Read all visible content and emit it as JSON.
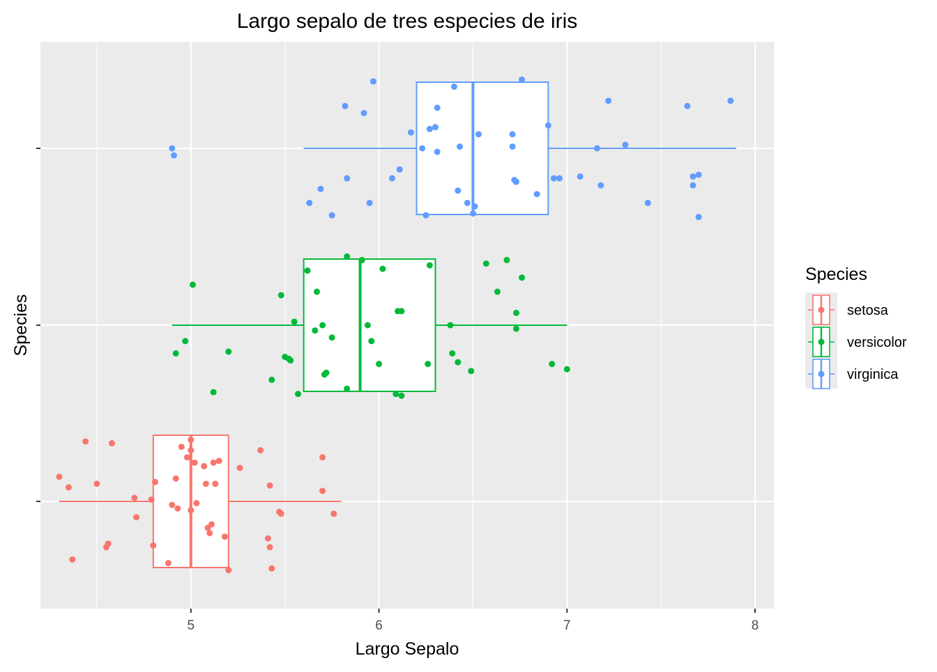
{
  "chart_data": {
    "type": "boxplot",
    "title": "Largo sepalo de tres especies de iris",
    "xlabel": "Largo Sepalo",
    "ylabel": "Species",
    "xlim": [
      4.2,
      8.1
    ],
    "x_ticks": [
      5,
      6,
      7,
      8
    ],
    "x_tick_labels": [
      "5",
      "6",
      "7",
      "8"
    ],
    "y_tick_labels": [],
    "categories": [
      "setosa",
      "versicolor",
      "virginica"
    ],
    "grid": true,
    "legend": {
      "title": "Species",
      "position": "right",
      "entries": [
        "setosa",
        "versicolor",
        "virginica"
      ]
    },
    "colors": {
      "setosa": "#F8766D",
      "versicolor": "#00BA38",
      "virginica": "#619CFF",
      "panel": "#EBEBEB",
      "grid": "#FFFFFF"
    },
    "series": [
      {
        "name": "setosa",
        "box": {
          "min": 4.3,
          "q1": 4.8,
          "median": 5.0,
          "q3": 5.2,
          "max": 5.8
        },
        "points": [
          [
            4.3,
            0.14
          ],
          [
            4.35,
            0.08
          ],
          [
            4.37,
            -0.33
          ],
          [
            4.44,
            0.34
          ],
          [
            4.5,
            0.1
          ],
          [
            4.55,
            -0.26
          ],
          [
            4.56,
            -0.24
          ],
          [
            4.58,
            0.33
          ],
          [
            4.7,
            0.02
          ],
          [
            4.71,
            -0.09
          ],
          [
            4.79,
            0.01
          ],
          [
            4.8,
            -0.25
          ],
          [
            4.81,
            0.11
          ],
          [
            4.88,
            -0.35
          ],
          [
            4.9,
            -0.02
          ],
          [
            4.92,
            0.13
          ],
          [
            4.93,
            -0.04
          ],
          [
            4.95,
            0.31
          ],
          [
            4.98,
            0.25
          ],
          [
            5.0,
            0.35
          ],
          [
            5.0,
            -0.05
          ],
          [
            5.0,
            0.29
          ],
          [
            5.02,
            0.22
          ],
          [
            5.03,
            -0.01
          ],
          [
            5.07,
            0.2
          ],
          [
            5.08,
            0.1
          ],
          [
            5.09,
            -0.15
          ],
          [
            5.1,
            -0.18
          ],
          [
            5.11,
            -0.13
          ],
          [
            5.12,
            0.22
          ],
          [
            5.13,
            0.1
          ],
          [
            5.15,
            0.23
          ],
          [
            5.18,
            -0.2
          ],
          [
            5.2,
            -0.39
          ],
          [
            5.26,
            0.19
          ],
          [
            5.37,
            0.29
          ],
          [
            5.41,
            -0.21
          ],
          [
            5.42,
            0.09
          ],
          [
            5.42,
            -0.26
          ],
          [
            5.43,
            -0.38
          ],
          [
            5.47,
            -0.06
          ],
          [
            5.48,
            -0.07
          ],
          [
            5.7,
            0.25
          ],
          [
            5.7,
            0.06
          ],
          [
            5.76,
            -0.07
          ]
        ]
      },
      {
        "name": "versicolor",
        "box": {
          "min": 4.9,
          "q1": 5.6,
          "median": 5.9,
          "q3": 6.3,
          "max": 7.0
        },
        "points": [
          [
            4.92,
            -0.16
          ],
          [
            4.97,
            -0.09
          ],
          [
            5.01,
            0.23
          ],
          [
            5.12,
            -0.38
          ],
          [
            5.2,
            -0.15
          ],
          [
            5.43,
            -0.31
          ],
          [
            5.48,
            0.17
          ],
          [
            5.5,
            -0.18
          ],
          [
            5.52,
            -0.19
          ],
          [
            5.53,
            -0.2
          ],
          [
            5.55,
            0.02
          ],
          [
            5.57,
            -0.39
          ],
          [
            5.62,
            0.31
          ],
          [
            5.66,
            -0.03
          ],
          [
            5.67,
            0.19
          ],
          [
            5.7,
            0.0
          ],
          [
            5.71,
            -0.28
          ],
          [
            5.72,
            -0.27
          ],
          [
            5.75,
            -0.07
          ],
          [
            5.83,
            0.39
          ],
          [
            5.83,
            -0.36
          ],
          [
            5.91,
            0.37
          ],
          [
            5.94,
            0.0
          ],
          [
            5.96,
            -0.09
          ],
          [
            6.02,
            0.32
          ],
          [
            6.0,
            -0.22
          ],
          [
            6.09,
            -0.39
          ],
          [
            6.1,
            0.08
          ],
          [
            6.12,
            -0.4
          ],
          [
            6.12,
            0.08
          ],
          [
            6.27,
            0.34
          ],
          [
            6.26,
            -0.22
          ],
          [
            6.38,
            0.0
          ],
          [
            6.39,
            -0.16
          ],
          [
            6.42,
            -0.21
          ],
          [
            6.49,
            -0.26
          ],
          [
            6.57,
            0.35
          ],
          [
            6.63,
            0.19
          ],
          [
            6.68,
            0.37
          ],
          [
            6.73,
            0.07
          ],
          [
            6.73,
            -0.02
          ],
          [
            6.76,
            0.27
          ],
          [
            6.92,
            -0.22
          ],
          [
            7.0,
            -0.25
          ]
        ]
      },
      {
        "name": "virginica",
        "box": {
          "min": 5.6,
          "q1": 6.2,
          "median": 6.5,
          "q3": 6.9,
          "max": 7.9
        },
        "points": [
          [
            4.9,
            0.0
          ],
          [
            4.91,
            -0.04
          ],
          [
            5.63,
            -0.31
          ],
          [
            5.69,
            -0.23
          ],
          [
            5.75,
            -0.38
          ],
          [
            5.82,
            0.24
          ],
          [
            5.83,
            -0.17
          ],
          [
            5.92,
            0.2
          ],
          [
            5.95,
            -0.31
          ],
          [
            5.97,
            0.38
          ],
          [
            6.07,
            -0.17
          ],
          [
            6.11,
            -0.12
          ],
          [
            6.17,
            0.09
          ],
          [
            6.23,
            0.0
          ],
          [
            6.25,
            -0.38
          ],
          [
            6.27,
            0.11
          ],
          [
            6.3,
            0.12
          ],
          [
            6.31,
            -0.02
          ],
          [
            6.31,
            0.23
          ],
          [
            6.4,
            0.35
          ],
          [
            6.42,
            -0.24
          ],
          [
            6.43,
            0.01
          ],
          [
            6.47,
            -0.31
          ],
          [
            6.5,
            -0.37
          ],
          [
            6.51,
            -0.33
          ],
          [
            6.53,
            0.08
          ],
          [
            6.71,
            0.08
          ],
          [
            6.71,
            0.01
          ],
          [
            6.72,
            -0.18
          ],
          [
            6.73,
            -0.19
          ],
          [
            6.76,
            0.39
          ],
          [
            6.84,
            -0.26
          ],
          [
            6.9,
            0.13
          ],
          [
            6.93,
            -0.17
          ],
          [
            6.96,
            -0.17
          ],
          [
            7.07,
            -0.16
          ],
          [
            7.16,
            0.0
          ],
          [
            7.18,
            -0.21
          ],
          [
            7.22,
            0.27
          ],
          [
            7.31,
            0.02
          ],
          [
            7.43,
            -0.31
          ],
          [
            7.64,
            0.24
          ],
          [
            7.67,
            -0.21
          ],
          [
            7.67,
            -0.16
          ],
          [
            7.7,
            -0.15
          ],
          [
            7.7,
            -0.39
          ],
          [
            7.87,
            0.27
          ]
        ]
      }
    ]
  }
}
